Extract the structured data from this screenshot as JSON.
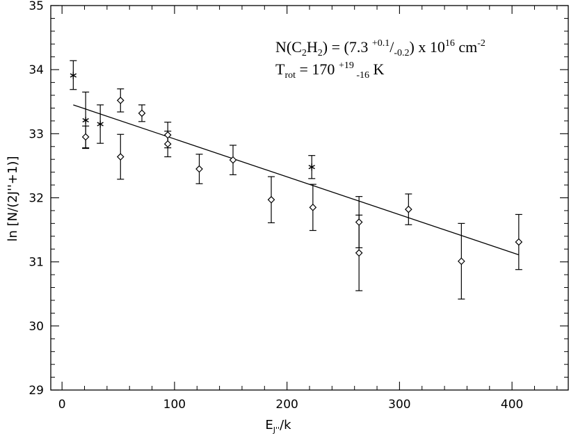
{
  "chart_data": {
    "type": "scatter",
    "xlabel": {
      "main": "E",
      "sub": "J''",
      "rest": "/k"
    },
    "ylabel": "ln [N/(2J''+1)]",
    "xlim": [
      -10,
      450
    ],
    "ylim": [
      29,
      35
    ],
    "xticks": [
      0,
      100,
      200,
      300,
      400
    ],
    "xtick_labels": [
      "0",
      "100",
      "200",
      "300",
      "400"
    ],
    "yticks": [
      29,
      30,
      31,
      32,
      33,
      34,
      35
    ],
    "ytick_labels": [
      "29",
      "30",
      "31",
      "32",
      "33",
      "34",
      "35"
    ],
    "grid": false,
    "annotations": {
      "density": {
        "lead": "N(C",
        "sub1": "2",
        "mid1": "H",
        "sub2": "2",
        "mid2": ") = (7.3 ",
        "sup_plus": "+0.1",
        "slash": "/",
        "sub_minus": "-0.2",
        "mid3": ") x 10",
        "sup_exp": "16",
        "mid4": " cm",
        "sup_unit": "-2"
      },
      "temperature": {
        "lead": "T",
        "sub_rot": "rot",
        "mid": " = 170 ",
        "sup_plus": "+19",
        "sub_minus": " -16",
        "unit": " K"
      }
    },
    "series": [
      {
        "marker": "asterisk",
        "points": [
          {
            "x": 10,
            "y": 33.91,
            "err_lo": 0.22,
            "err_hi": 0.23
          },
          {
            "x": 21,
            "y": 33.21,
            "err_lo": 0.44,
            "err_hi": 0.44
          },
          {
            "x": 34,
            "y": 33.15,
            "err_lo": 0.3,
            "err_hi": 0.3
          },
          {
            "x": 222,
            "y": 32.48,
            "err_lo": 0.18,
            "err_hi": 0.18
          }
        ]
      },
      {
        "marker": "diamond",
        "points": [
          {
            "x": 21,
            "y": 32.95,
            "err_lo": 0.17,
            "err_hi": 0.17
          },
          {
            "x": 52,
            "y": 33.52,
            "err_lo": 0.18,
            "err_hi": 0.18
          },
          {
            "x": 52,
            "y": 32.64,
            "err_lo": 0.35,
            "err_hi": 0.35
          },
          {
            "x": 71,
            "y": 33.32,
            "err_lo": 0.13,
            "err_hi": 0.13
          },
          {
            "x": 94,
            "y": 32.98,
            "err_lo": 0.2,
            "err_hi": 0.2
          },
          {
            "x": 94,
            "y": 32.84,
            "err_lo": 0.2,
            "err_hi": 0.2
          },
          {
            "x": 122,
            "y": 32.45,
            "err_lo": 0.23,
            "err_hi": 0.23
          },
          {
            "x": 152,
            "y": 32.59,
            "err_lo": 0.23,
            "err_hi": 0.23
          },
          {
            "x": 186,
            "y": 31.97,
            "err_lo": 0.36,
            "err_hi": 0.36
          },
          {
            "x": 223,
            "y": 31.85,
            "err_lo": 0.36,
            "err_hi": 0.36
          },
          {
            "x": 264,
            "y": 31.62,
            "err_lo": 0.4,
            "err_hi": 0.4
          },
          {
            "x": 264,
            "y": 31.14,
            "err_lo": 0.59,
            "err_hi": 0.59
          },
          {
            "x": 308,
            "y": 31.82,
            "err_lo": 0.24,
            "err_hi": 0.24
          },
          {
            "x": 355,
            "y": 31.01,
            "err_lo": 0.59,
            "err_hi": 0.59
          },
          {
            "x": 406,
            "y": 31.31,
            "err_lo": 0.43,
            "err_hi": 0.43
          }
        ]
      }
    ],
    "fit_line": {
      "x": [
        10,
        406
      ],
      "y": [
        33.45,
        31.11
      ]
    }
  }
}
